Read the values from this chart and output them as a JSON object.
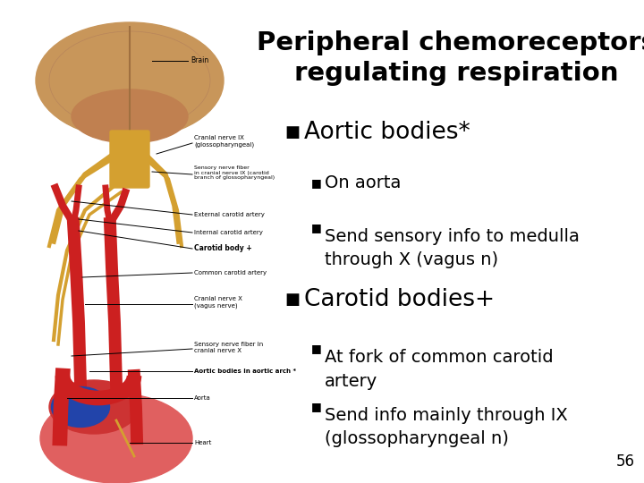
{
  "title_line1": "Peripheral chemoreceptors",
  "title_line2": "regulating respiration",
  "title_fontsize": 21,
  "bg_color": "#ffffff",
  "text_color": "#000000",
  "bullet1_text": "Aortic bodies*",
  "bullet1_fontsize": 19,
  "sub_bullet1a": "On aorta",
  "sub_bullet1b": "Send sensory info to medulla\nthrough X (vagus n)",
  "sub_fontsize": 14,
  "bullet2_text": "Carotid bodies+",
  "bullet2_fontsize": 19,
  "sub_bullet2a": "At fork of common carotid\nartery",
  "sub_bullet2b": "Send info mainly through IX\n(glossopharyngeal n)",
  "page_num": "56",
  "bullet_marker": "■",
  "sub_bullet_marker": "■",
  "brain_color": "#C8965A",
  "brainstem_color": "#D4A030",
  "nerve_color": "#D4A030",
  "artery_color": "#CC2020",
  "vein_color": "#2244AA",
  "heart_color": "#CC4040",
  "heart_label_color": "#000000",
  "label_color": "#000000",
  "label_fontsize": 5.5
}
